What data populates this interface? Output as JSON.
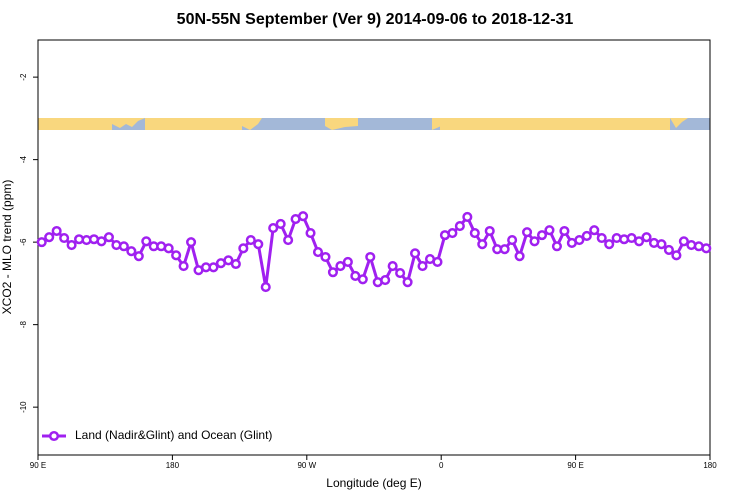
{
  "chart_data": {
    "type": "line",
    "title": "50N-55N September (Ver 9)   2014-09-06 to 2018-12-31",
    "xlabel": "Longitude (deg E)",
    "ylabel": "XCO2 - MLO trend (ppm)",
    "xlim": [
      90,
      540
    ],
    "ylim": [
      -11.16,
      -1.1
    ],
    "xticks": [
      {
        "value": 90,
        "label": "90 E"
      },
      180,
      {
        "value": 270,
        "label": "90 W"
      },
      {
        "value": 360,
        "label": "0"
      },
      {
        "value": 450,
        "label": "90 E"
      },
      {
        "value": 540,
        "label": "180"
      }
    ],
    "yticks": [
      -2,
      -4,
      -6,
      -8,
      -10
    ],
    "legend": "bottom-left",
    "x": [
      92.5,
      97.5,
      102.5,
      107.5,
      112.5,
      117.5,
      122.5,
      127.5,
      132.5,
      137.5,
      142.5,
      147.5,
      152.5,
      157.5,
      162.5,
      167.5,
      172.5,
      177.5,
      182.5,
      187.5,
      192.5,
      197.5,
      202.5,
      207.5,
      212.5,
      217.5,
      222.5,
      227.5,
      232.5,
      237.5,
      242.5,
      247.5,
      252.5,
      257.5,
      262.5,
      267.5,
      272.5,
      277.5,
      282.5,
      287.5,
      292.5,
      297.5,
      302.5,
      307.5,
      312.5,
      317.5,
      322.5,
      327.5,
      332.5,
      337.5,
      342.5,
      347.5,
      352.5,
      357.5,
      362.5,
      367.5,
      372.5,
      377.5,
      382.5,
      387.5,
      392.5,
      397.5,
      402.5,
      407.5,
      412.5,
      417.5,
      422.5,
      427.5,
      432.5,
      437.5,
      442.5,
      447.5,
      452.5,
      457.5,
      462.5,
      467.5,
      472.5,
      477.5,
      482.5,
      487.5,
      492.5,
      497.5,
      502.5,
      507.5,
      512.5,
      517.5,
      522.5,
      527.5,
      532.5,
      537.5
    ],
    "series": [
      {
        "name": "Land (Nadir&Glint) and Ocean (Glint)",
        "color": "#a020f0",
        "values": [
          -6.0,
          -5.88,
          -5.73,
          -5.9,
          -6.07,
          -5.93,
          -5.95,
          -5.93,
          -5.98,
          -5.88,
          -6.07,
          -6.1,
          -6.22,
          -6.34,
          -5.98,
          -6.1,
          -6.1,
          -6.15,
          -6.32,
          -6.58,
          -6.0,
          -6.68,
          -6.61,
          -6.61,
          -6.51,
          -6.44,
          -6.53,
          -6.15,
          -5.95,
          -6.05,
          -7.09,
          -5.66,
          -5.56,
          -5.95,
          -5.44,
          -5.37,
          -5.78,
          -6.24,
          -6.36,
          -6.73,
          -6.58,
          -6.48,
          -6.82,
          -6.9,
          -6.36,
          -6.97,
          -6.92,
          -6.58,
          -6.75,
          -6.97,
          -6.27,
          -6.58,
          -6.41,
          -6.48,
          -5.83,
          -5.78,
          -5.61,
          -5.39,
          -5.78,
          -6.05,
          -5.73,
          -6.17,
          -6.17,
          -5.95,
          -6.34,
          -5.76,
          -5.98,
          -5.83,
          -5.71,
          -6.1,
          -5.73,
          -6.02,
          -5.95,
          -5.85,
          -5.71,
          -5.9,
          -6.05,
          -5.9,
          -5.93,
          -5.9,
          -5.98,
          -5.88,
          -6.02,
          -6.05,
          -6.19,
          -6.32,
          -5.98,
          -6.07,
          -6.1,
          -6.15
        ]
      }
    ]
  }
}
